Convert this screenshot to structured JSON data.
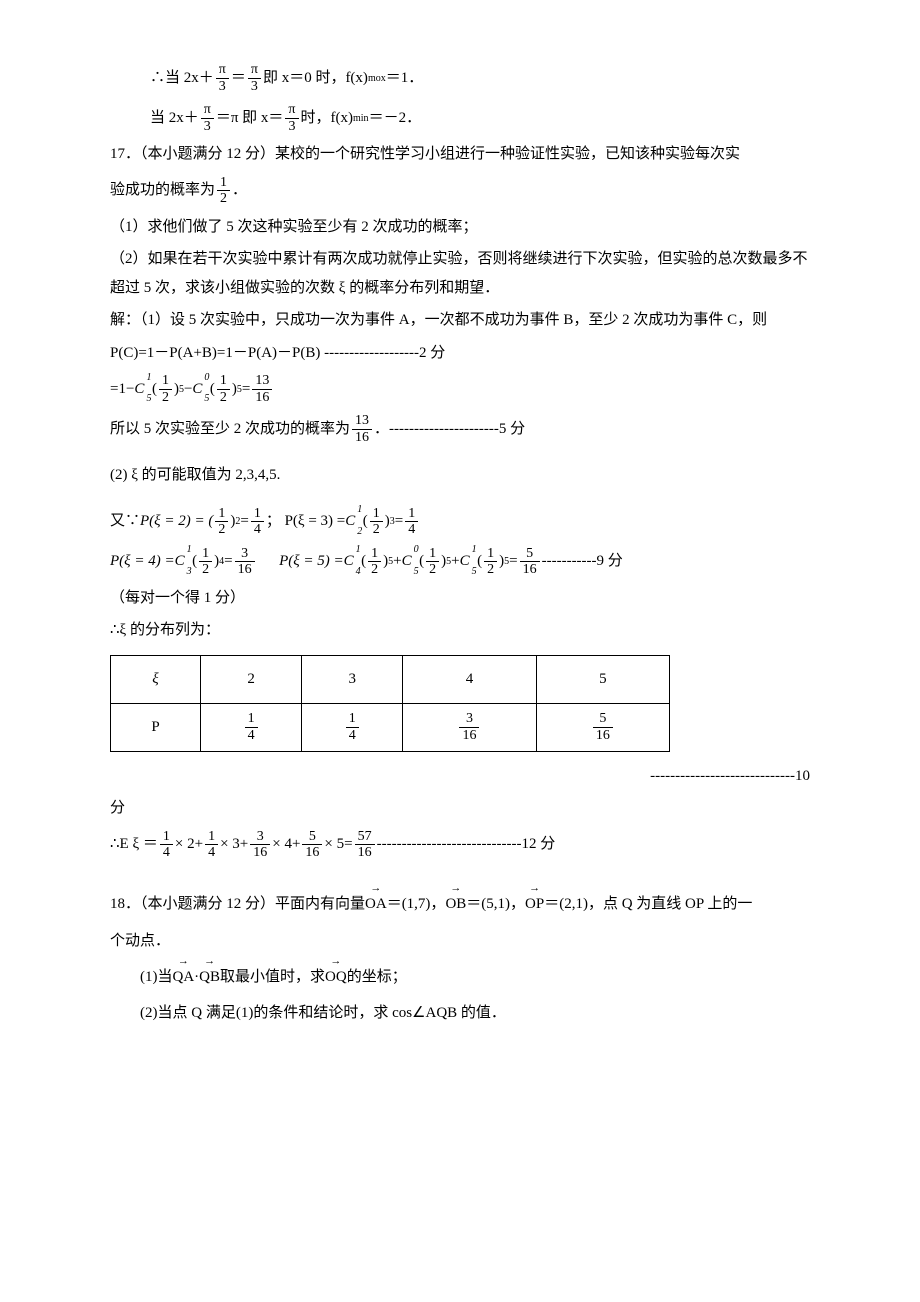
{
  "p16": {
    "line1_a": "∴当 2x＋",
    "line1_b": "＝",
    "line1_c": "即 x＝0 时，f(x)",
    "line1_sub": "mox",
    "line1_d": "＝1．",
    "line2_a": "当 2x＋",
    "line2_b": "＝π 即 x＝",
    "line2_c": "时，f(x)",
    "line2_sub": "min",
    "line2_d": "＝－2．",
    "pi": "π",
    "three": "3"
  },
  "p17": {
    "title": "17．（本小题满分 12 分）某校的一个研究性学习小组进行一种验证性实验，已知该种实验每次实",
    "title2a": "验成功的概率为",
    "title2b": "．",
    "q1": "（1）求他们做了 5 次这种实验至少有 2 次成功的概率；",
    "q2": "（2）如果在若干次实验中累计有两次成功就停止实验，否则将继续进行下次实验，但实验的总次数最多不超过 5 次，求该小组做实验的次数 ξ 的概率分布列和期望．",
    "sol1": "解：（1）设 5 次实验中，只成功一次为事件 A，一次都不成功为事件 B，至少 2 次成功为事件 C，则",
    "sol2": "P(C)=1－P(A+B)=1－P(A)－P(B) -------------------2 分",
    "sol3a": "=1−",
    "sol3b": "−",
    "sol3c": "=",
    "sol4a": "所以 5 次实验至少 2 次成功的概率为",
    "sol4b": "．----------------------5 分",
    "sol5": "(2)  ξ 的可能取值为 2,3,4,5.",
    "sol6a": "又∵",
    "sol6_p2": "P(ξ = 2) = (",
    "sol6_p2b": ")",
    "sol6_p2c": " = ",
    "sol6_p3": "；  P(ξ = 3) = ",
    "sol6_p3b": "(",
    "sol6_p3c": ")",
    "sol6_p3d": " = ",
    "sol7_p4": "P(ξ = 4) = ",
    "sol7_p4b": "(",
    "sol7_p4c": ")",
    "sol7_p4d": " = ",
    "sol7_sp": "      ",
    "sol7_p5": "P(ξ = 5) = ",
    "sol7_p5b": "(",
    "sol7_p5c": ")",
    "sol7_p5d": " + ",
    "sol7_p5e": "(",
    "sol7_p5f": ")",
    "sol7_p5h": "(",
    "sol7_p5i": ")",
    "sol7_p5g": " = ",
    "sol7_end": " -----------9 分",
    "sol8": "（每对一个得 1 分）",
    "sol9": "∴ξ 的分布列为：",
    "table": {
      "h": [
        "ξ",
        "2",
        "3",
        "4",
        "5"
      ],
      "r": "P",
      "cells": [
        {
          "n": "1",
          "d": "4"
        },
        {
          "n": "1",
          "d": "4"
        },
        {
          "n": "3",
          "d": "16"
        },
        {
          "n": "5",
          "d": "16"
        }
      ]
    },
    "after_table": "-----------------------------10",
    "after_table2": "分",
    "exp_a": "∴E ξ ＝",
    "exp_b": " × 2+",
    "exp_c": " × 3+",
    "exp_d": " × 4+",
    "exp_e": " × 5=",
    "exp_end": " -----------------------------12 分",
    "half_n": "1",
    "half_d": "2",
    "r13_n": "13",
    "r13_d": "16",
    "r3_n": "3",
    "r3_d": "16",
    "r5_n": "5",
    "r5_d": "16",
    "r57_n": "57",
    "r57_d": "16",
    "q14_n": "1",
    "q14_d": "4",
    "exp2": "2",
    "exp3": "3",
    "exp4": "4",
    "exp5": "5",
    "c15": {
      "b": "C",
      "t": "1",
      "s": "5"
    },
    "c05": {
      "b": "C",
      "t": "0",
      "s": "5"
    },
    "c12": {
      "b": "C",
      "t": "1",
      "s": "2"
    },
    "c13": {
      "b": "C",
      "t": "1",
      "s": "3"
    },
    "c14": {
      "b": "C",
      "t": "1",
      "s": "4"
    }
  },
  "p18": {
    "title_a": "18．（本小题满分 12 分）平面内有向量",
    "oa": "OA",
    "eq_a": "＝(1,7)，",
    "ob": "OB",
    "eq_b": "＝(5,1)，",
    "op": "OP",
    "eq_c": "＝(2,1)，点 Q 为直线 OP 上的一",
    "title_b": "个动点．",
    "q1_a": "(1)当",
    "qa": "QA",
    "dot": "·",
    "qb": "QB",
    "q1_b": "取最小值时，求",
    "oq": "OQ",
    "q1_c": "的坐标；",
    "q2": "(2)当点 Q 满足(1)的条件和结论时，求 cos∠AQB 的值．"
  }
}
